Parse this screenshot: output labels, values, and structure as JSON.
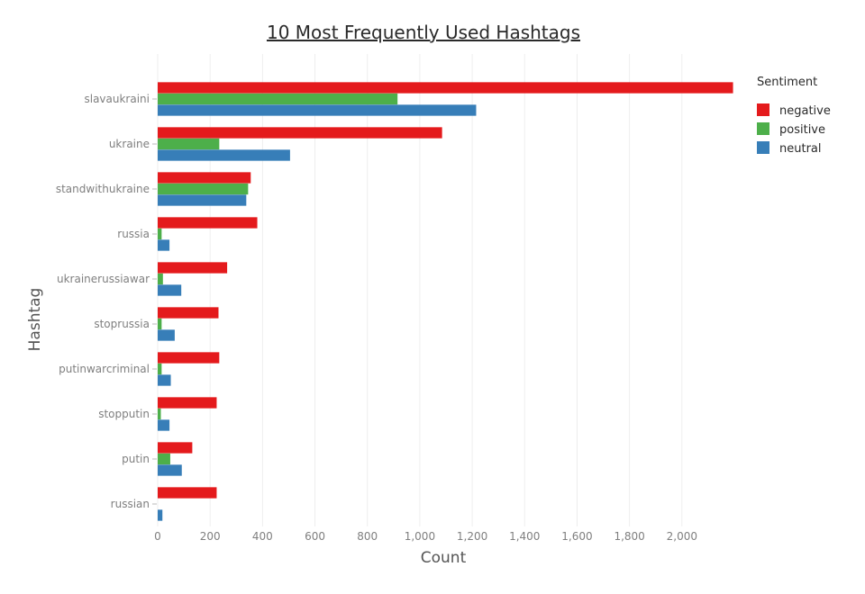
{
  "chart_data": {
    "type": "bar",
    "orientation": "horizontal",
    "title": "10 Most Frequently Used Hashtags",
    "xlabel": "Count",
    "ylabel": "Hashtag",
    "xlim": [
      0,
      2200
    ],
    "xticks": [
      0,
      200,
      400,
      600,
      800,
      1000,
      1200,
      1400,
      1600,
      1800,
      2000
    ],
    "xtick_labels": [
      "0",
      "200",
      "400",
      "600",
      "800",
      "1,000",
      "1,200",
      "1,400",
      "1,600",
      "1,800",
      "2,000"
    ],
    "grid": true,
    "legend": {
      "title": "Sentiment",
      "placement": "top-right"
    },
    "categories": [
      "slavaukraini",
      "ukraine",
      "standwithukraine",
      "russia",
      "ukrainerussiawar",
      "stoprussia",
      "putinwarcriminal",
      "stopputin",
      "putin",
      "russian"
    ],
    "series": [
      {
        "name": "negative",
        "color": "#e41a1c",
        "values": [
          2195,
          1085,
          355,
          380,
          265,
          232,
          235,
          225,
          132,
          225
        ]
      },
      {
        "name": "positive",
        "color": "#4daf4a",
        "values": [
          915,
          235,
          345,
          15,
          20,
          15,
          15,
          12,
          48,
          0
        ]
      },
      {
        "name": "neutral",
        "color": "#377eb8",
        "values": [
          1215,
          505,
          338,
          45,
          90,
          65,
          50,
          45,
          92,
          18
        ]
      }
    ]
  }
}
